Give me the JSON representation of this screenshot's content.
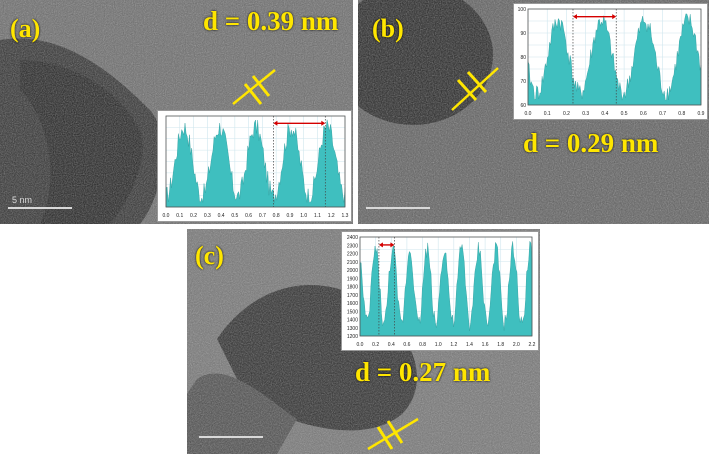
{
  "panels": {
    "a": {
      "label": "(a)",
      "spacing": "d = 0.39 nm",
      "scale": "5 nm",
      "inset": {
        "x_ticks": [
          "0.0",
          "0.1",
          "0.2",
          "0.3",
          "0.4",
          "0.5",
          "0.6",
          "0.7",
          "0.8",
          "0.9",
          "1.0",
          "1.1",
          "1.2",
          "1.3"
        ],
        "peaks": 5
      }
    },
    "b": {
      "label": "(b)",
      "spacing": "d = 0.29 nm",
      "inset": {
        "x_ticks": [
          "0.0",
          "0.1",
          "0.2",
          "0.3",
          "0.4",
          "0.5",
          "0.6",
          "0.7",
          "0.8",
          "0.9"
        ],
        "y_ticks": [
          "60",
          "70",
          "80",
          "90",
          "100"
        ],
        "peaks": 4
      }
    },
    "c": {
      "label": "(c)",
      "spacing": "d = 0.27 nm",
      "inset": {
        "x_ticks": [
          "0.0",
          "0.2",
          "0.4",
          "0.6",
          "0.8",
          "1.0",
          "1.2",
          "1.4",
          "1.6",
          "1.8",
          "2.0",
          "2.2"
        ],
        "y_ticks": [
          "1200",
          "1300",
          "1400",
          "1500",
          "1600",
          "1700",
          "1800",
          "1900",
          "2000",
          "2100",
          "2200",
          "2300",
          "2400"
        ],
        "peaks": 10
      }
    }
  },
  "colors": {
    "label": "#ffe600",
    "fill": "#3fbfbf",
    "arrow": "#d40000"
  }
}
